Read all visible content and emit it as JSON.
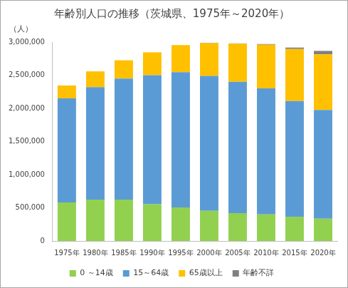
{
  "chart_data": {
    "type": "bar",
    "title": "年齢別人口の推移（茨城県、1975年～2020年）",
    "ylabel": "（人）",
    "categories": [
      "1975年",
      "1980年",
      "1985年",
      "1990年",
      "1995年",
      "2000年",
      "2005年",
      "2010年",
      "2015年",
      "2020年"
    ],
    "series": [
      {
        "name": "0 ～14歳",
        "color": "#92d050",
        "values": [
          580000,
          625000,
          625000,
          555000,
          505000,
          455000,
          420000,
          400000,
          365000,
          335000
        ]
      },
      {
        "name": "15～64歳",
        "color": "#5b9bd5",
        "values": [
          1570000,
          1695000,
          1825000,
          1945000,
          2040000,
          2035000,
          1980000,
          1900000,
          1745000,
          1640000
        ]
      },
      {
        "name": "65歳以上",
        "color": "#ffc000",
        "values": [
          195000,
          238000,
          275000,
          345000,
          410000,
          495000,
          575000,
          660000,
          785000,
          840000
        ]
      },
      {
        "name": "年齢不詳",
        "color": "#808080",
        "values": [
          0,
          0,
          0,
          0,
          0,
          5000,
          5000,
          10000,
          22000,
          52000
        ]
      }
    ],
    "stacked": true,
    "legend": "bottom",
    "grid": false,
    "ylim": [
      0,
      3000000
    ],
    "yticks": [
      0,
      {
        "value": 500000,
        "label": "500,000"
      },
      {
        "value": 1000000,
        "label": "1,000,000"
      },
      {
        "value": 1500000,
        "label": "1,500,000"
      },
      {
        "value": 2000000,
        "label": "2,000,000"
      },
      {
        "value": 2500000,
        "label": "2,500,000"
      },
      {
        "value": 3000000,
        "label": "3,000,000"
      }
    ]
  }
}
